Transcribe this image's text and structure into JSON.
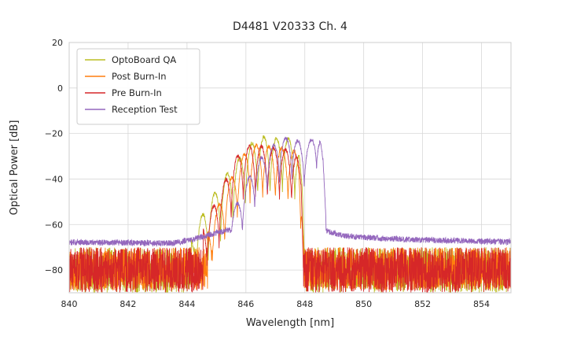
{
  "figure": {
    "title": "D4481 V20333 Ch. 4"
  },
  "colors": {
    "background": "#ffffff",
    "grid": "#d8d8d8",
    "spine": "#cccccc",
    "text": "#262626",
    "legend_border": "#cccccc"
  },
  "chart_data": {
    "type": "line",
    "title": "D4481 V20333 Ch. 4",
    "xlabel": "Wavelength [nm]",
    "ylabel": "Optical Power [dB]",
    "xlim": [
      840,
      855
    ],
    "ylim": [
      -90,
      20
    ],
    "xticks": [
      840,
      842,
      844,
      846,
      848,
      850,
      852,
      854
    ],
    "yticks": [
      20,
      0,
      -20,
      -40,
      -60,
      -80
    ],
    "grid": true,
    "legend": {
      "position": "upper-left",
      "entries": [
        "OptoBoard QA",
        "Post Burn-In",
        "Pre Burn-In",
        "Reception Test"
      ]
    },
    "samples_per_series": 2400,
    "series": [
      {
        "name": "OptoBoard QA",
        "color": "#bcbd22",
        "seed": 11,
        "noise_floor": {
          "points": [
            [
              840,
              -80
            ],
            [
              855,
              -80
            ]
          ],
          "amplitude_db": 10
        },
        "signal": {
          "range_nm": [
            844.15,
            847.98
          ],
          "mode_spacing_nm": 0.42,
          "mode_phase_nm": 844.3,
          "mode_depth_db": 26,
          "envelope_points_nm_db": [
            [
              844.15,
              -66
            ],
            [
              844.5,
              -56
            ],
            [
              844.85,
              -48
            ],
            [
              845.2,
              -41
            ],
            [
              845.55,
              -34
            ],
            [
              845.9,
              -29
            ],
            [
              846.25,
              -23.5
            ],
            [
              846.6,
              -21.5
            ],
            [
              846.95,
              -22.5
            ],
            [
              847.3,
              -21
            ],
            [
              847.6,
              -23.5
            ],
            [
              847.8,
              -27
            ],
            [
              847.92,
              -45
            ],
            [
              847.98,
              -68
            ]
          ]
        }
      },
      {
        "name": "Post Burn-In",
        "color": "#ff7f0e",
        "seed": 22,
        "noise_floor": {
          "points": [
            [
              840,
              -79.5
            ],
            [
              855,
              -79.5
            ]
          ],
          "amplitude_db": 9.5
        },
        "signal": {
          "range_nm": [
            844.7,
            847.96
          ],
          "mode_spacing_nm": 0.43,
          "mode_phase_nm": 844.85,
          "mode_depth_db": 24,
          "envelope_points_nm_db": [
            [
              844.7,
              -62
            ],
            [
              845.05,
              -52
            ],
            [
              845.4,
              -42
            ],
            [
              845.75,
              -33
            ],
            [
              846.05,
              -27
            ],
            [
              846.35,
              -25
            ],
            [
              846.65,
              -25.5
            ],
            [
              846.95,
              -26
            ],
            [
              847.25,
              -26.5
            ],
            [
              847.55,
              -27
            ],
            [
              847.8,
              -29
            ],
            [
              847.9,
              -45
            ],
            [
              847.96,
              -66
            ]
          ]
        }
      },
      {
        "name": "Pre Burn-In",
        "color": "#d62728",
        "seed": 33,
        "noise_floor": {
          "points": [
            [
              840,
              -80
            ],
            [
              855,
              -80
            ]
          ],
          "amplitude_db": 10
        },
        "signal": {
          "range_nm": [
            844.55,
            847.97
          ],
          "mode_spacing_nm": 0.41,
          "mode_phase_nm": 844.68,
          "mode_depth_db": 24,
          "envelope_points_nm_db": [
            [
              844.55,
              -60
            ],
            [
              844.9,
              -52
            ],
            [
              845.25,
              -42
            ],
            [
              845.6,
              -32
            ],
            [
              845.9,
              -26.5
            ],
            [
              846.2,
              -25
            ],
            [
              846.5,
              -25.5
            ],
            [
              846.8,
              -26
            ],
            [
              847.1,
              -26.5
            ],
            [
              847.4,
              -27
            ],
            [
              847.7,
              -28.5
            ],
            [
              847.88,
              -38
            ],
            [
              847.97,
              -70
            ]
          ]
        }
      },
      {
        "name": "Reception Test",
        "color": "#9467bd",
        "seed": 44,
        "noise_floor": {
          "points": [
            [
              840,
              -67.8
            ],
            [
              843.5,
              -68.2
            ],
            [
              844.2,
              -66.5
            ],
            [
              844.9,
              -64
            ],
            [
              845.4,
              -62.5
            ],
            [
              848.8,
              -63
            ],
            [
              849.3,
              -65
            ],
            [
              850.5,
              -66
            ],
            [
              852,
              -66.8
            ],
            [
              855,
              -67.6
            ]
          ],
          "amplitude_db": 1.3
        },
        "signal": {
          "range_nm": [
            845.4,
            848.72
          ],
          "mode_spacing_nm": 0.42,
          "mode_phase_nm": 845.46,
          "mode_depth_db": 19,
          "envelope_points_nm_db": [
            [
              845.4,
              -58
            ],
            [
              845.8,
              -48
            ],
            [
              846.15,
              -38
            ],
            [
              846.5,
              -31
            ],
            [
              846.85,
              -26
            ],
            [
              847.15,
              -23
            ],
            [
              847.45,
              -21.5
            ],
            [
              847.75,
              -23
            ],
            [
              848.0,
              -25.5
            ],
            [
              848.2,
              -23
            ],
            [
              848.4,
              -18
            ],
            [
              848.52,
              -21
            ],
            [
              848.62,
              -32
            ],
            [
              848.72,
              -55
            ]
          ]
        }
      }
    ]
  }
}
